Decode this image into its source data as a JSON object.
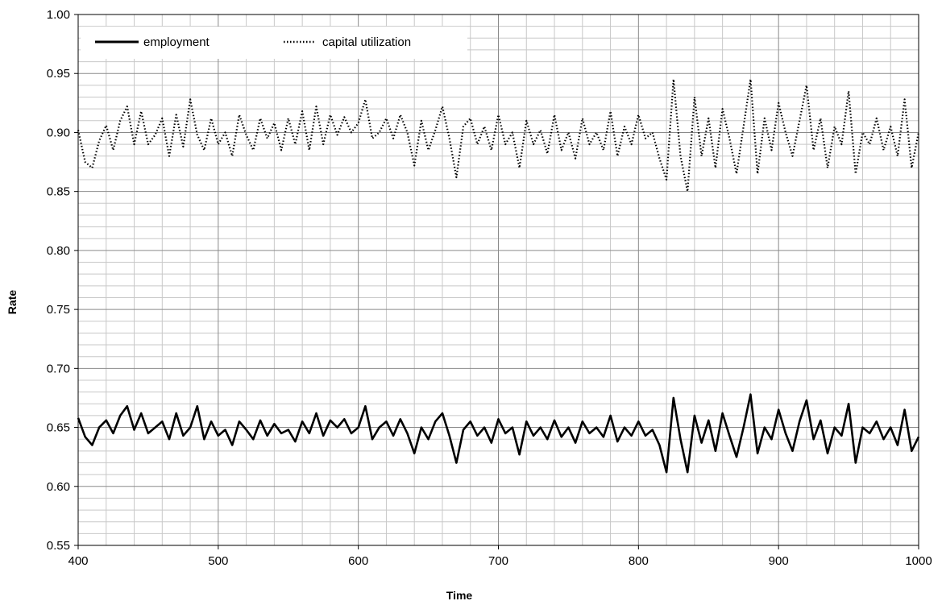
{
  "chart_data": {
    "type": "line",
    "title": "",
    "xlabel": "Time",
    "ylabel": "Rate",
    "xlim": [
      400,
      1000
    ],
    "ylim": [
      0.55,
      1.0
    ],
    "x_ticks": [
      "400",
      "500",
      "600",
      "700",
      "800",
      "900",
      "1000"
    ],
    "y_ticks": [
      "0.55",
      "0.60",
      "0.65",
      "0.70",
      "0.75",
      "0.80",
      "0.85",
      "0.90",
      "0.95",
      "1.00"
    ],
    "grid": true,
    "legend_position": "top-left",
    "series": [
      {
        "name": "employment",
        "style": "solid",
        "x": [
          400,
          405,
          410,
          415,
          420,
          425,
          430,
          435,
          440,
          445,
          450,
          455,
          460,
          465,
          470,
          475,
          480,
          485,
          490,
          495,
          500,
          505,
          510,
          515,
          520,
          525,
          530,
          535,
          540,
          545,
          550,
          555,
          560,
          565,
          570,
          575,
          580,
          585,
          590,
          595,
          600,
          605,
          610,
          615,
          620,
          625,
          630,
          635,
          640,
          645,
          650,
          655,
          660,
          665,
          670,
          675,
          680,
          685,
          690,
          695,
          700,
          705,
          710,
          715,
          720,
          725,
          730,
          735,
          740,
          745,
          750,
          755,
          760,
          765,
          770,
          775,
          780,
          785,
          790,
          795,
          800,
          805,
          810,
          815,
          820,
          825,
          830,
          835,
          840,
          845,
          850,
          855,
          860,
          865,
          870,
          875,
          880,
          885,
          890,
          895,
          900,
          905,
          910,
          915,
          920,
          925,
          930,
          935,
          940,
          945,
          950,
          955,
          960,
          965,
          970,
          975,
          980,
          985,
          990,
          995,
          1000
        ],
        "y": [
          0.658,
          0.642,
          0.635,
          0.65,
          0.656,
          0.645,
          0.66,
          0.668,
          0.648,
          0.662,
          0.645,
          0.65,
          0.655,
          0.64,
          0.662,
          0.643,
          0.65,
          0.668,
          0.64,
          0.655,
          0.643,
          0.648,
          0.635,
          0.655,
          0.648,
          0.64,
          0.656,
          0.643,
          0.653,
          0.645,
          0.648,
          0.638,
          0.655,
          0.645,
          0.662,
          0.643,
          0.656,
          0.65,
          0.657,
          0.645,
          0.65,
          0.668,
          0.64,
          0.65,
          0.655,
          0.643,
          0.657,
          0.645,
          0.628,
          0.65,
          0.64,
          0.655,
          0.662,
          0.643,
          0.62,
          0.648,
          0.655,
          0.643,
          0.65,
          0.637,
          0.657,
          0.645,
          0.65,
          0.627,
          0.655,
          0.643,
          0.65,
          0.64,
          0.656,
          0.642,
          0.65,
          0.637,
          0.655,
          0.645,
          0.65,
          0.642,
          0.66,
          0.638,
          0.65,
          0.643,
          0.655,
          0.643,
          0.648,
          0.635,
          0.612,
          0.675,
          0.64,
          0.612,
          0.66,
          0.637,
          0.656,
          0.63,
          0.662,
          0.643,
          0.625,
          0.65,
          0.678,
          0.628,
          0.65,
          0.64,
          0.665,
          0.645,
          0.63,
          0.655,
          0.673,
          0.64,
          0.656,
          0.628,
          0.65,
          0.643,
          0.67,
          0.62,
          0.65,
          0.645,
          0.655,
          0.64,
          0.65,
          0.635,
          0.665,
          0.63,
          0.642
        ]
      },
      {
        "name": "capital utilization",
        "style": "dotted",
        "x": [
          400,
          405,
          410,
          415,
          420,
          425,
          430,
          435,
          440,
          445,
          450,
          455,
          460,
          465,
          470,
          475,
          480,
          485,
          490,
          495,
          500,
          505,
          510,
          515,
          520,
          525,
          530,
          535,
          540,
          545,
          550,
          555,
          560,
          565,
          570,
          575,
          580,
          585,
          590,
          595,
          600,
          605,
          610,
          615,
          620,
          625,
          630,
          635,
          640,
          645,
          650,
          655,
          660,
          665,
          670,
          675,
          680,
          685,
          690,
          695,
          700,
          705,
          710,
          715,
          720,
          725,
          730,
          735,
          740,
          745,
          750,
          755,
          760,
          765,
          770,
          775,
          780,
          785,
          790,
          795,
          800,
          805,
          810,
          815,
          820,
          825,
          830,
          835,
          840,
          845,
          850,
          855,
          860,
          865,
          870,
          875,
          880,
          885,
          890,
          895,
          900,
          905,
          910,
          915,
          920,
          925,
          930,
          935,
          940,
          945,
          950,
          955,
          960,
          965,
          970,
          975,
          980,
          985,
          990,
          995,
          1000
        ],
        "y": [
          0.902,
          0.875,
          0.87,
          0.893,
          0.906,
          0.885,
          0.91,
          0.922,
          0.89,
          0.918,
          0.89,
          0.898,
          0.912,
          0.88,
          0.915,
          0.888,
          0.928,
          0.898,
          0.885,
          0.912,
          0.89,
          0.9,
          0.88,
          0.915,
          0.898,
          0.885,
          0.912,
          0.895,
          0.908,
          0.885,
          0.912,
          0.89,
          0.918,
          0.885,
          0.922,
          0.89,
          0.915,
          0.898,
          0.913,
          0.9,
          0.908,
          0.928,
          0.895,
          0.9,
          0.912,
          0.895,
          0.915,
          0.9,
          0.872,
          0.91,
          0.885,
          0.902,
          0.922,
          0.895,
          0.862,
          0.905,
          0.912,
          0.89,
          0.905,
          0.885,
          0.915,
          0.89,
          0.9,
          0.87,
          0.91,
          0.89,
          0.902,
          0.882,
          0.915,
          0.885,
          0.9,
          0.878,
          0.912,
          0.89,
          0.9,
          0.885,
          0.918,
          0.88,
          0.905,
          0.89,
          0.915,
          0.895,
          0.9,
          0.878,
          0.86,
          0.945,
          0.88,
          0.85,
          0.93,
          0.88,
          0.912,
          0.87,
          0.92,
          0.895,
          0.865,
          0.905,
          0.945,
          0.865,
          0.912,
          0.885,
          0.925,
          0.9,
          0.88,
          0.91,
          0.94,
          0.885,
          0.912,
          0.87,
          0.905,
          0.89,
          0.935,
          0.865,
          0.9,
          0.89,
          0.912,
          0.885,
          0.905,
          0.88,
          0.928,
          0.87,
          0.9
        ]
      }
    ]
  }
}
